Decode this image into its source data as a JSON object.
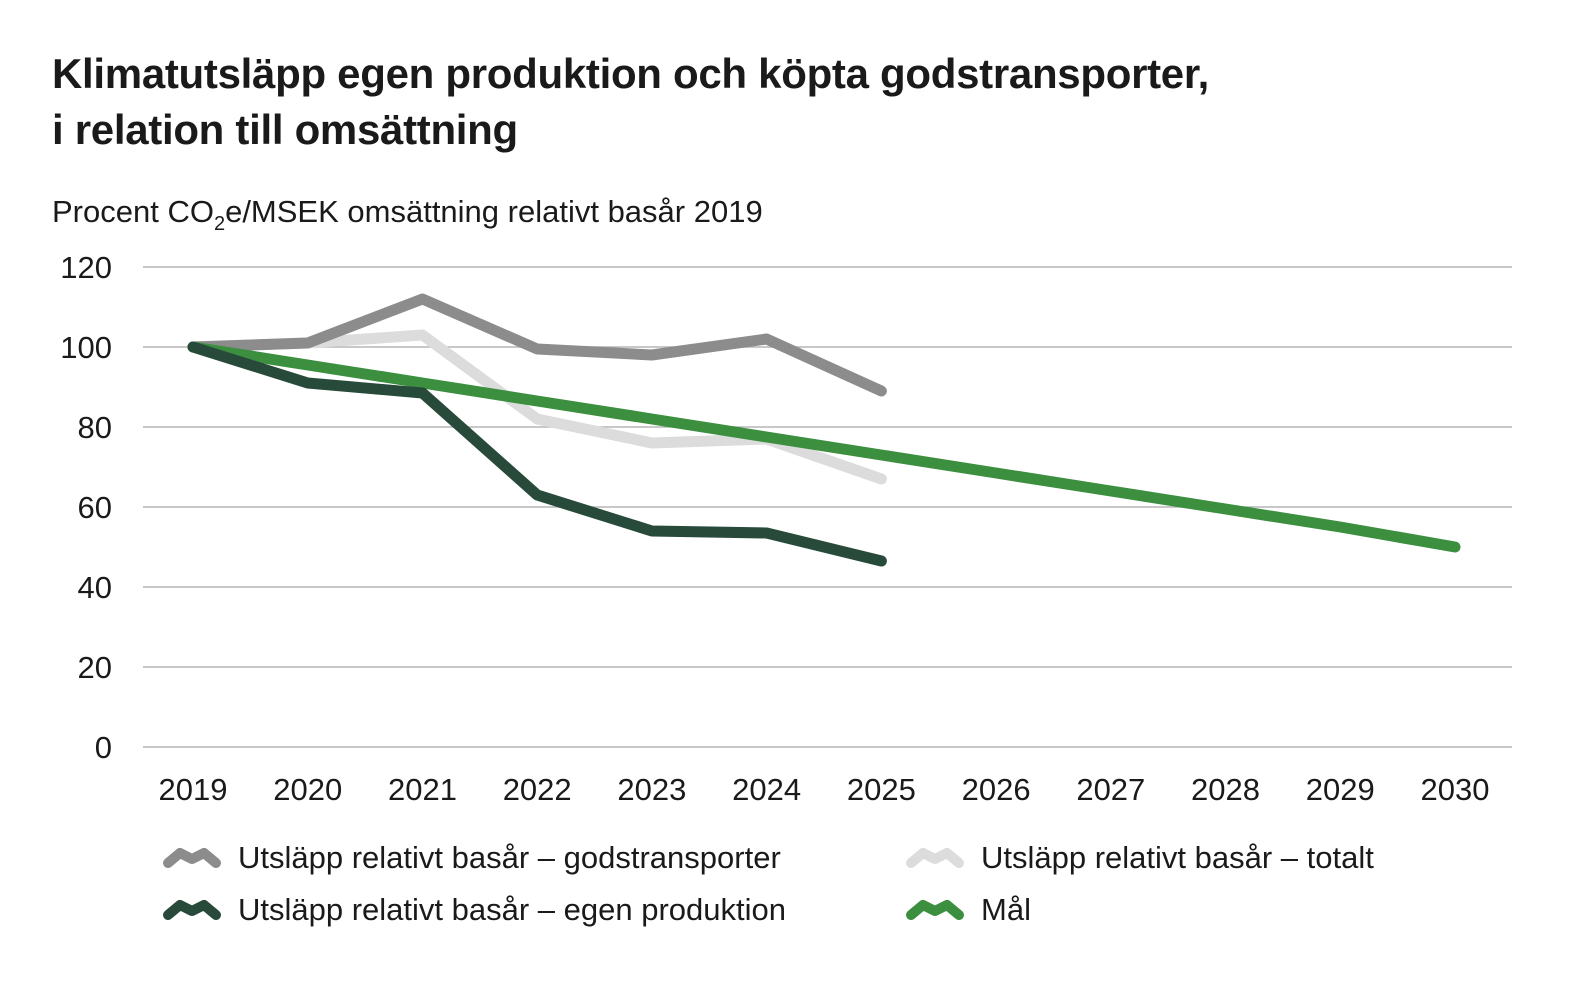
{
  "title_line1": "Klimatutsläpp egen produktion och köpta godstransporter,",
  "title_line2": "i relation till omsättning",
  "subtitle": {
    "prefix": "Procent CO",
    "sub": "2",
    "suffix": "e/MSEK omsättning relativt basår 2019"
  },
  "colors": {
    "godstransporter": "#8c8c8c",
    "totalt": "#dcdcdc",
    "egen_produktion": "#274a3a",
    "mal": "#3b8f3e",
    "grid": "#b5b5b5"
  },
  "legend": [
    {
      "key": "godstransporter",
      "label": "Utsläpp relativt basår – godstransporter"
    },
    {
      "key": "totalt",
      "label": "Utsläpp relativt basår – totalt"
    },
    {
      "key": "egen_produktion",
      "label": "Utsläpp relativt basår – egen produktion"
    },
    {
      "key": "mal",
      "label": "Mål"
    }
  ],
  "chart_data": {
    "type": "line",
    "title": "Klimatutsläpp egen produktion och köpta godstransporter, i relation till omsättning",
    "ylabel": "Procent CO2e/MSEK omsättning relativt basår 2019",
    "xlabel": "",
    "categories": [
      "2019",
      "2020",
      "2021",
      "2022",
      "2023",
      "2024",
      "2025",
      "2026",
      "2027",
      "2028",
      "2029",
      "2030"
    ],
    "ylim": [
      0,
      120
    ],
    "yticks": [
      "0",
      "20",
      "40",
      "60",
      "80",
      "100",
      "120"
    ],
    "grid": true,
    "legend_position": "bottom",
    "series": [
      {
        "key": "totalt",
        "name": "Utsläpp relativt basår – totalt",
        "values": [
          100,
          101,
          103,
          82,
          76,
          77,
          67,
          null,
          null,
          null,
          null,
          null
        ]
      },
      {
        "key": "godstransporter",
        "name": "Utsläpp relativt basår – godstransporter",
        "values": [
          100,
          101,
          112,
          99.5,
          98,
          102,
          89,
          null,
          null,
          null,
          null,
          null
        ]
      },
      {
        "key": "mal",
        "name": "Mål",
        "values": [
          100,
          95.5,
          91,
          86.5,
          82,
          77.5,
          73,
          68.5,
          64,
          59.5,
          55,
          50
        ]
      },
      {
        "key": "egen_produktion",
        "name": "Utsläpp relativt basår – egen produktion",
        "values": [
          100,
          91,
          88.5,
          63,
          54,
          53.5,
          46.5,
          null,
          null,
          null,
          null,
          null
        ]
      }
    ]
  }
}
